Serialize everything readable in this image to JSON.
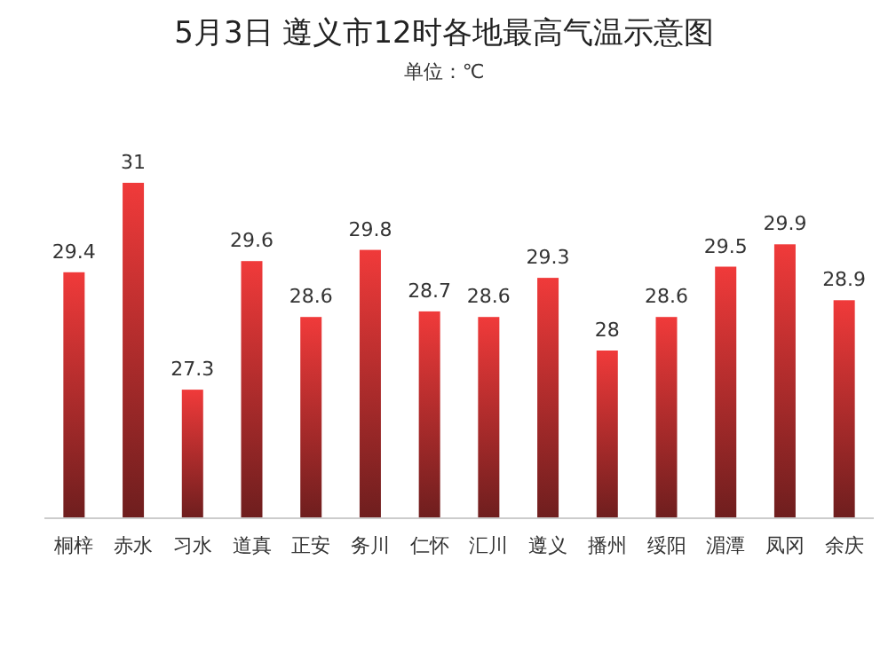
{
  "chart_data": {
    "type": "bar",
    "title": "5月3日 遵义市12时各地最高气温示意图",
    "subtitle": "单位：℃",
    "categories": [
      "桐梓",
      "赤水",
      "习水",
      "道真",
      "正安",
      "务川",
      "仁怀",
      "汇川",
      "遵义",
      "播州",
      "绥阳",
      "湄潭",
      "凤冈",
      "余庆"
    ],
    "values": [
      29.4,
      31,
      27.3,
      29.6,
      28.6,
      29.8,
      28.7,
      28.6,
      29.3,
      28,
      28.6,
      29.5,
      29.9,
      28.9
    ],
    "color": "#f03a3a",
    "ylim": [
      25,
      31
    ],
    "data_labels": true
  }
}
